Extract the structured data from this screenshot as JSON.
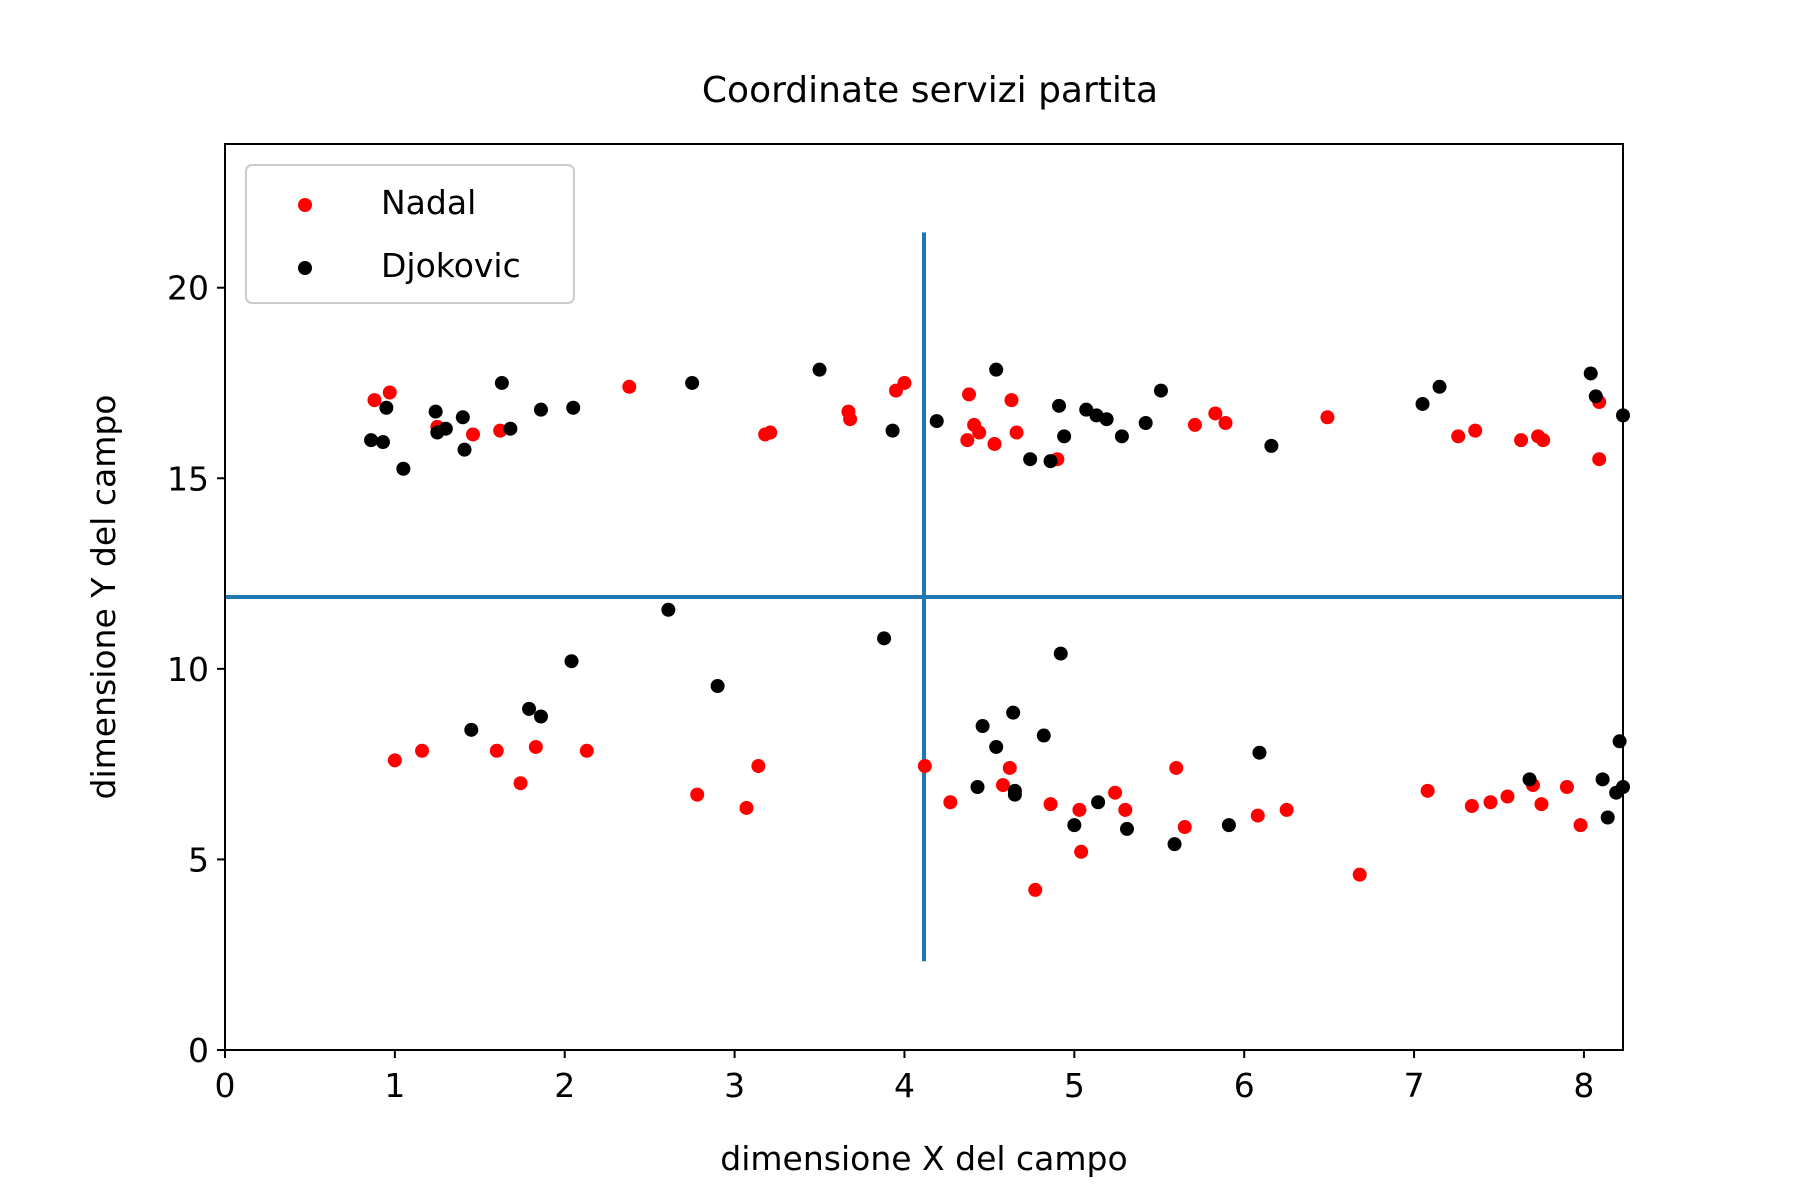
{
  "chart_data": {
    "type": "scatter",
    "title": "Coordinate servizi partita",
    "xlabel": "dimensione X del campo",
    "ylabel": "dimensione Y del campo",
    "xlim": [
      0,
      8.23
    ],
    "ylim": [
      0,
      23.77
    ],
    "xticks": [
      0,
      1,
      2,
      3,
      4,
      5,
      6,
      7,
      8
    ],
    "yticks": [
      0,
      5,
      10,
      15,
      20
    ],
    "grid": false,
    "legend": "upper-left",
    "reference_lines": [
      {
        "orientation": "vertical",
        "x": 4.115,
        "y_from": 2.33,
        "y_to": 21.45,
        "color": "#1f77b4"
      },
      {
        "orientation": "horizontal",
        "y": 11.885,
        "x_from": 0,
        "x_to": 8.23,
        "color": "#1f77b4"
      }
    ],
    "series": [
      {
        "name": "Nadal",
        "color": "#ff0000",
        "points": [
          [
            0.88,
            17.05
          ],
          [
            0.97,
            17.25
          ],
          [
            1.25,
            16.35
          ],
          [
            1.46,
            16.15
          ],
          [
            1.62,
            16.25
          ],
          [
            2.38,
            17.4
          ],
          [
            3.18,
            16.15
          ],
          [
            3.21,
            16.2
          ],
          [
            3.67,
            16.75
          ],
          [
            3.68,
            16.55
          ],
          [
            3.95,
            17.3
          ],
          [
            4.0,
            17.5
          ],
          [
            4.37,
            16.0
          ],
          [
            4.38,
            17.2
          ],
          [
            4.41,
            16.4
          ],
          [
            4.44,
            16.2
          ],
          [
            4.53,
            15.9
          ],
          [
            4.63,
            17.05
          ],
          [
            4.66,
            16.2
          ],
          [
            4.9,
            15.5
          ],
          [
            5.71,
            16.4
          ],
          [
            5.83,
            16.7
          ],
          [
            5.89,
            16.45
          ],
          [
            6.49,
            16.6
          ],
          [
            7.26,
            16.1
          ],
          [
            7.36,
            16.25
          ],
          [
            7.63,
            16.0
          ],
          [
            7.73,
            16.1
          ],
          [
            7.76,
            16.0
          ],
          [
            8.09,
            17.0
          ],
          [
            8.09,
            15.5
          ],
          [
            1.0,
            7.6
          ],
          [
            1.16,
            7.85
          ],
          [
            1.6,
            7.85
          ],
          [
            1.74,
            7.0
          ],
          [
            1.83,
            7.95
          ],
          [
            2.13,
            7.85
          ],
          [
            2.78,
            6.7
          ],
          [
            3.07,
            6.35
          ],
          [
            3.14,
            7.45
          ],
          [
            4.12,
            7.45
          ],
          [
            4.27,
            6.5
          ],
          [
            4.58,
            6.95
          ],
          [
            4.62,
            7.4
          ],
          [
            4.77,
            4.2
          ],
          [
            4.86,
            6.45
          ],
          [
            5.03,
            6.3
          ],
          [
            5.04,
            5.2
          ],
          [
            5.24,
            6.75
          ],
          [
            5.3,
            6.3
          ],
          [
            5.6,
            7.4
          ],
          [
            5.65,
            5.85
          ],
          [
            6.08,
            6.15
          ],
          [
            6.25,
            6.3
          ],
          [
            6.68,
            4.6
          ],
          [
            7.08,
            6.8
          ],
          [
            7.34,
            6.4
          ],
          [
            7.45,
            6.5
          ],
          [
            7.55,
            6.65
          ],
          [
            7.7,
            6.95
          ],
          [
            7.75,
            6.45
          ],
          [
            7.9,
            6.9
          ],
          [
            7.98,
            5.9
          ]
        ]
      },
      {
        "name": "Djokovic",
        "color": "#000000",
        "points": [
          [
            0.86,
            16.0
          ],
          [
            0.93,
            15.95
          ],
          [
            0.95,
            16.85
          ],
          [
            1.05,
            15.25
          ],
          [
            1.24,
            16.75
          ],
          [
            1.25,
            16.2
          ],
          [
            1.3,
            16.3
          ],
          [
            1.4,
            16.6
          ],
          [
            1.41,
            15.75
          ],
          [
            1.63,
            17.5
          ],
          [
            1.68,
            16.3
          ],
          [
            1.86,
            16.8
          ],
          [
            2.05,
            16.85
          ],
          [
            2.75,
            17.5
          ],
          [
            3.5,
            17.85
          ],
          [
            3.93,
            16.25
          ],
          [
            4.19,
            16.5
          ],
          [
            4.54,
            17.85
          ],
          [
            4.74,
            15.5
          ],
          [
            4.86,
            15.45
          ],
          [
            4.91,
            16.9
          ],
          [
            4.94,
            16.1
          ],
          [
            5.07,
            16.8
          ],
          [
            5.13,
            16.65
          ],
          [
            5.19,
            16.55
          ],
          [
            5.28,
            16.1
          ],
          [
            5.42,
            16.45
          ],
          [
            5.51,
            17.3
          ],
          [
            6.16,
            15.85
          ],
          [
            7.05,
            16.95
          ],
          [
            7.15,
            17.4
          ],
          [
            8.04,
            17.75
          ],
          [
            8.07,
            17.15
          ],
          [
            8.23,
            16.65
          ],
          [
            1.45,
            8.4
          ],
          [
            1.79,
            8.95
          ],
          [
            1.86,
            8.75
          ],
          [
            2.04,
            10.2
          ],
          [
            2.61,
            11.55
          ],
          [
            2.9,
            9.55
          ],
          [
            3.88,
            10.8
          ],
          [
            4.43,
            6.9
          ],
          [
            4.46,
            8.5
          ],
          [
            4.54,
            7.95
          ],
          [
            4.64,
            8.85
          ],
          [
            4.65,
            6.8
          ],
          [
            4.65,
            6.7
          ],
          [
            4.82,
            8.25
          ],
          [
            4.92,
            10.4
          ],
          [
            5.0,
            5.9
          ],
          [
            5.14,
            6.5
          ],
          [
            5.31,
            5.8
          ],
          [
            5.59,
            5.4
          ],
          [
            5.91,
            5.9
          ],
          [
            6.09,
            7.8
          ],
          [
            7.68,
            7.1
          ],
          [
            8.14,
            6.1
          ],
          [
            8.19,
            6.75
          ],
          [
            8.21,
            8.1
          ],
          [
            8.23,
            6.9
          ],
          [
            8.11,
            7.1
          ]
        ]
      }
    ]
  }
}
